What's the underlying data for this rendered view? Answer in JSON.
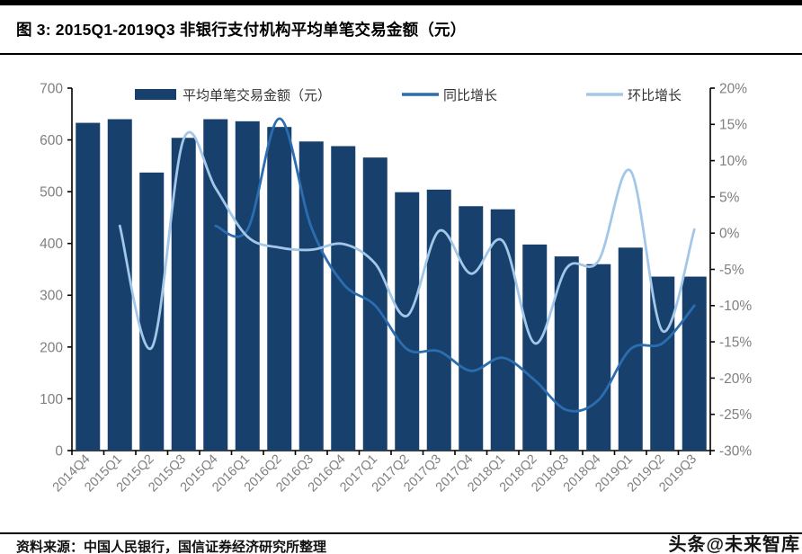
{
  "header": {
    "title": "图 3: 2015Q1-2019Q3 非银行支付机构平均单笔交易金额（元）"
  },
  "footer": {
    "source": "资料来源：中国人民银行，国信证券经济研究所整理",
    "watermark": "头条@未来智库"
  },
  "colors": {
    "bar": "#17406d",
    "yoy_line": "#2c6daf",
    "qoq_line": "#a3c7e8",
    "axis": "#000000",
    "tick_label": "#7f7f7f",
    "legend_text": "#333333"
  },
  "chart_data": {
    "type": "bar",
    "subtype": "combo-bar-line-dual-axis",
    "title": "图 3: 2015Q1-2019Q3 非银行支付机构平均单笔交易金额（元）",
    "categories": [
      "2014Q4",
      "2015Q1",
      "2015Q2",
      "2015Q3",
      "2015Q4",
      "2016Q1",
      "2016Q2",
      "2016Q3",
      "2016Q4",
      "2017Q1",
      "2017Q2",
      "2017Q3",
      "2017Q4",
      "2018Q1",
      "2018Q2",
      "2018Q3",
      "2018Q4",
      "2019Q1",
      "2019Q2",
      "2019Q3"
    ],
    "series": [
      {
        "name": "平均单笔交易金额（元）",
        "type": "bar",
        "axis": "left",
        "values": [
          633,
          640,
          537,
          604,
          640,
          636,
          625,
          597,
          588,
          566,
          499,
          504,
          472,
          466,
          398,
          375,
          360,
          392,
          336,
          336
        ]
      },
      {
        "name": "同比增长",
        "type": "line",
        "axis": "right",
        "values": [
          null,
          null,
          null,
          null,
          1.0,
          0.5,
          15.8,
          0.8,
          -7.0,
          -10.0,
          -16.0,
          -16.3,
          -19.0,
          -17.2,
          -20.3,
          -24.4,
          -23.0,
          -16.0,
          -15.2,
          -10.0
        ]
      },
      {
        "name": "环比增长",
        "type": "line",
        "axis": "right",
        "values": [
          null,
          1.0,
          -15.8,
          13.0,
          6.2,
          -0.5,
          -2.0,
          -2.3,
          -1.5,
          -4.2,
          -11.4,
          0.3,
          -5.6,
          -1.1,
          -15.2,
          -4.8,
          -3.8,
          8.6,
          -13.5,
          0.5
        ]
      }
    ],
    "left_axis": {
      "min": 0,
      "max": 700,
      "step": 100,
      "tick_labels": [
        "0",
        "100",
        "200",
        "300",
        "400",
        "500",
        "600",
        "700"
      ]
    },
    "right_axis": {
      "min": -30,
      "max": 20,
      "step": 5,
      "format": "percent",
      "tick_labels": [
        "-30%",
        "-25%",
        "-20%",
        "-15%",
        "-10%",
        "-5%",
        "0%",
        "5%",
        "10%",
        "15%",
        "20%"
      ]
    },
    "legend_position": "top",
    "grid": false
  }
}
